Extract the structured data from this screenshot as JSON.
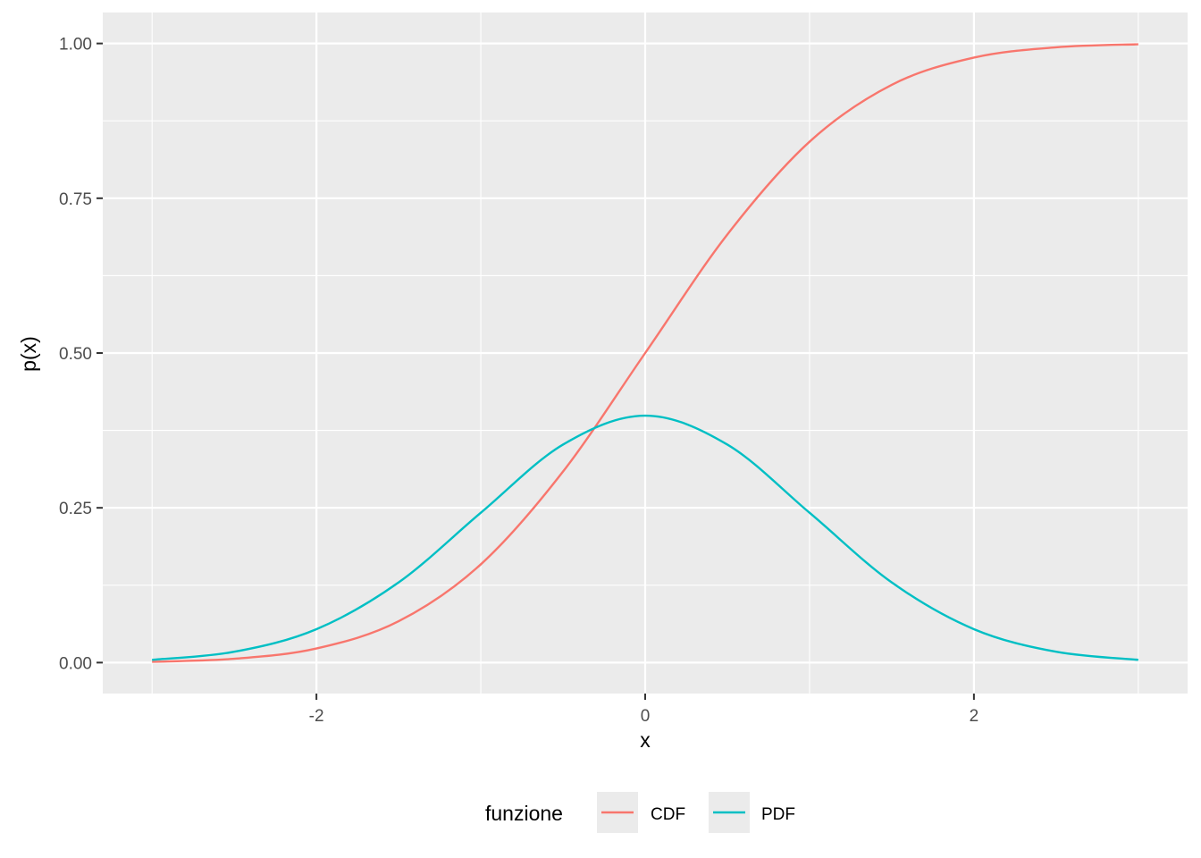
{
  "chart_data": {
    "type": "line",
    "xlabel": "x",
    "ylabel": "p(x)",
    "xlim": [
      -3,
      3
    ],
    "ylim": [
      0,
      1
    ],
    "x_ticks": [
      -2,
      0,
      2
    ],
    "x_tick_labels": [
      "-2",
      "0",
      "2"
    ],
    "y_ticks": [
      0,
      0.25,
      0.5,
      0.75,
      1.0
    ],
    "y_tick_labels": [
      "0.00",
      "0.25",
      "0.50",
      "0.75",
      "1.00"
    ],
    "grid": true,
    "legend": {
      "title": "funzione",
      "position": "bottom"
    },
    "series": [
      {
        "name": "CDF",
        "color": "#F8766D",
        "x": [
          -3,
          -2.5,
          -2,
          -1.5,
          -1,
          -0.5,
          0,
          0.5,
          1,
          1.5,
          2,
          2.5,
          3
        ],
        "values": [
          0.0013,
          0.0062,
          0.0228,
          0.0668,
          0.1587,
          0.3085,
          0.5,
          0.6915,
          0.8413,
          0.9332,
          0.9772,
          0.9938,
          0.9987
        ]
      },
      {
        "name": "PDF",
        "color": "#00BFC4",
        "x": [
          -3,
          -2.5,
          -2,
          -1.5,
          -1,
          -0.5,
          0,
          0.5,
          1,
          1.5,
          2,
          2.5,
          3
        ],
        "values": [
          0.0044,
          0.0175,
          0.054,
          0.1295,
          0.242,
          0.3521,
          0.3989,
          0.3521,
          0.242,
          0.1295,
          0.054,
          0.0175,
          0.0044
        ]
      }
    ]
  }
}
